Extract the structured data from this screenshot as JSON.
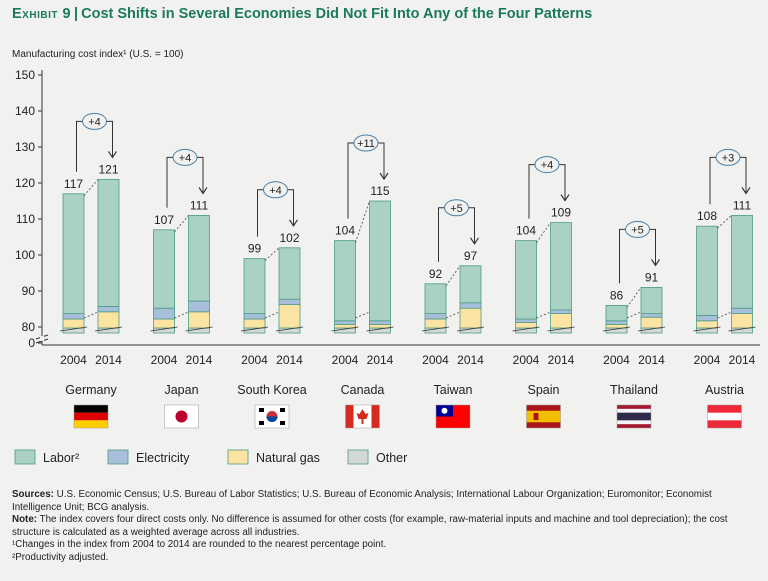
{
  "title": {
    "exhibit": "Exhibit 9",
    "text": "Cost Shifts in Several Economies Did Not Fit Into Any of the Four Patterns"
  },
  "chart_data": {
    "type": "bar",
    "stacked": true,
    "ylabel": "Manufacturing cost index¹ (U.S. = 100)",
    "yticks": [
      0,
      80,
      90,
      100,
      110,
      120,
      130,
      140,
      150
    ],
    "axis_break": "between 0 and 80",
    "ylim": [
      0,
      150
    ],
    "years": [
      "2004",
      "2014"
    ],
    "countries": [
      {
        "name": "Germany",
        "flag": "germany-flag",
        "change": "+4",
        "bars": [
          {
            "year": "2004",
            "total": 117,
            "other": 2,
            "natural_gas": 2.5,
            "electricity": 1.5,
            "labor": 111
          },
          {
            "year": "2014",
            "total": 121,
            "other": 2,
            "natural_gas": 4.5,
            "electricity": 1.5,
            "labor": 113
          }
        ]
      },
      {
        "name": "Japan",
        "flag": "japan-flag",
        "change": "+4",
        "bars": [
          {
            "year": "2004",
            "total": 107,
            "other": 2,
            "natural_gas": 2.5,
            "electricity": 3,
            "labor": 99.5
          },
          {
            "year": "2014",
            "total": 111,
            "other": 2,
            "natural_gas": 4.5,
            "electricity": 3,
            "labor": 101.5
          }
        ]
      },
      {
        "name": "South Korea",
        "flag": "south-korea-flag",
        "change": "+4",
        "bars": [
          {
            "year": "2004",
            "total": 99,
            "other": 2,
            "natural_gas": 2.5,
            "electricity": 1.5,
            "labor": 93
          },
          {
            "year": "2014",
            "total": 102,
            "other": 2,
            "natural_gas": 6.5,
            "electricity": 1.5,
            "labor": 92
          }
        ]
      },
      {
        "name": "Canada",
        "flag": "canada-flag",
        "change": "+11",
        "bars": [
          {
            "year": "2004",
            "total": 104,
            "other": 2,
            "natural_gas": 1,
            "electricity": 1,
            "labor": 100
          },
          {
            "year": "2014",
            "total": 115,
            "other": 2,
            "natural_gas": 1,
            "electricity": 1,
            "labor": 111
          }
        ]
      },
      {
        "name": "Taiwan",
        "flag": "taiwan-flag",
        "change": "+5",
        "bars": [
          {
            "year": "2004",
            "total": 92,
            "other": 2,
            "natural_gas": 2.5,
            "electricity": 1.5,
            "labor": 86
          },
          {
            "year": "2014",
            "total": 97,
            "other": 2,
            "natural_gas": 5.5,
            "electricity": 1.5,
            "labor": 88
          }
        ]
      },
      {
        "name": "Spain",
        "flag": "spain-flag",
        "change": "+4",
        "bars": [
          {
            "year": "2004",
            "total": 104,
            "other": 2,
            "natural_gas": 1.5,
            "electricity": 1,
            "labor": 99.5
          },
          {
            "year": "2014",
            "total": 109,
            "other": 2,
            "natural_gas": 4,
            "electricity": 1,
            "labor": 102
          }
        ]
      },
      {
        "name": "Thailand",
        "flag": "thailand-flag",
        "change": "+5",
        "bars": [
          {
            "year": "2004",
            "total": 86,
            "other": 2,
            "natural_gas": 1,
            "electricity": 1,
            "labor": 82
          },
          {
            "year": "2014",
            "total": 91,
            "other": 2,
            "natural_gas": 3,
            "electricity": 1,
            "labor": 85
          }
        ]
      },
      {
        "name": "Austria",
        "flag": "austria-flag",
        "change": "+3",
        "bars": [
          {
            "year": "2004",
            "total": 108,
            "other": 2,
            "natural_gas": 2,
            "electricity": 1.5,
            "labor": 102.5
          },
          {
            "year": "2014",
            "total": 111,
            "other": 2,
            "natural_gas": 4,
            "electricity": 1.5,
            "labor": 103.5
          }
        ]
      }
    ],
    "legend": [
      {
        "key": "labor",
        "label": "Labor²",
        "color": "#a9d1c4"
      },
      {
        "key": "electricity",
        "label": "Electricity",
        "color": "#a8bfdc"
      },
      {
        "key": "natural_gas",
        "label": "Natural gas",
        "color": "#fbe3a1"
      },
      {
        "key": "other",
        "label": "Other",
        "color": "#d3d8d8"
      }
    ]
  },
  "colors": {
    "accent": "#1c7a5a",
    "bar_border": "#4e9c84",
    "text": "#222222"
  },
  "footnotes": {
    "sources_label": "Sources:",
    "sources_text": "U.S. Economic Census; U.S. Bureau of Labor Statistics; U.S. Bureau of Economic Analysis; International Labour Organization; Euromonitor; Economist Intelligence Unit; BCG analysis.",
    "note_label": "Note:",
    "note_text": "The index covers four direct costs only. No difference is assumed for other costs (for example, raw-material inputs and machine and tool depreciation); the cost structure is calculated as a weighted average across all industries.",
    "fn1": "¹Changes in the index from 2004 to 2014 are rounded to the nearest percentage point.",
    "fn2": "²Productivity adjusted."
  }
}
